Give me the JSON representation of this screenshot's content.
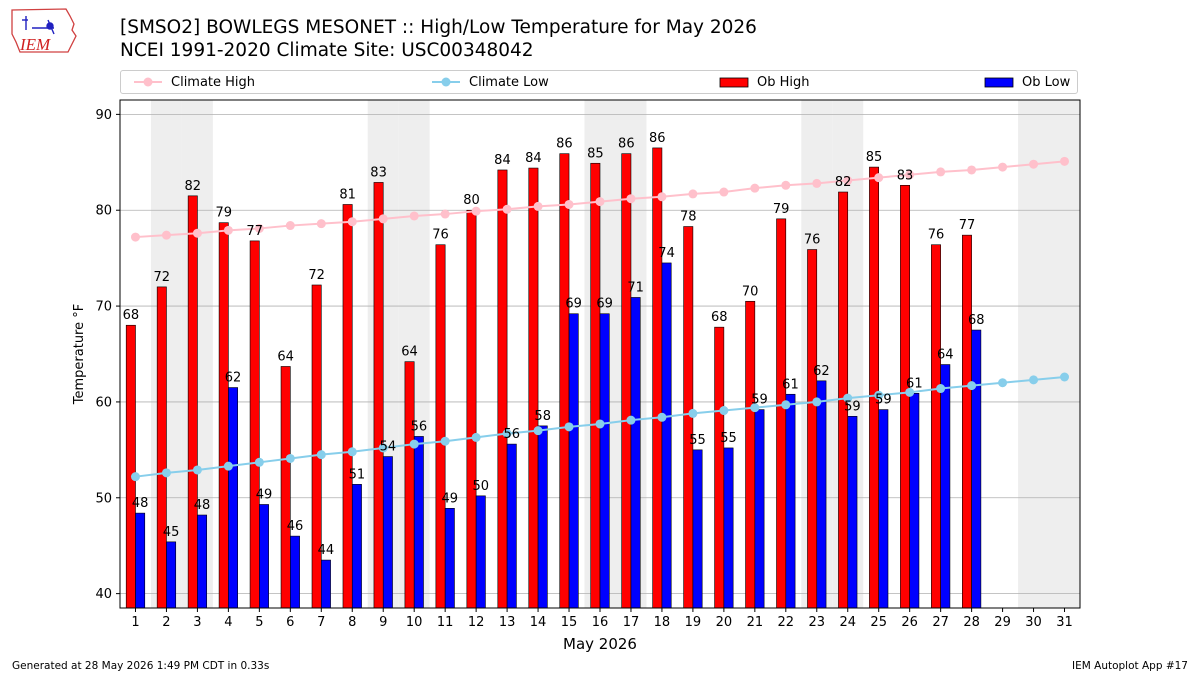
{
  "header": {
    "title_line1": "[SMSO2] BOWLEGS MESONET :: High/Low Temperature for May 2026",
    "title_line2": "NCEI 1991-2020 Climate Site: USC00348042",
    "logo_text": "IEM"
  },
  "footer": {
    "generated": "Generated at 28 May 2026 1:49 PM CDT in 0.33s",
    "app": "IEM Autoplot App #17"
  },
  "chart_data": {
    "type": "bar",
    "xlabel": "May 2026",
    "ylabel": "Temperature °F",
    "ylim": [
      38.5,
      91.5
    ],
    "yticks": [
      40,
      50,
      60,
      70,
      80,
      90
    ],
    "grid": true,
    "legend_placement": "top, full width above plot",
    "x": [
      1,
      2,
      3,
      4,
      5,
      6,
      7,
      8,
      9,
      10,
      11,
      12,
      13,
      14,
      15,
      16,
      17,
      18,
      19,
      20,
      21,
      22,
      23,
      24,
      25,
      26,
      27,
      28,
      29,
      30,
      31
    ],
    "shaded_weekend_days": [
      2,
      3,
      9,
      10,
      16,
      17,
      23,
      24,
      30,
      31
    ],
    "colors": {
      "ob_high": "#ff0000",
      "ob_low": "#0000ff",
      "climate_high": "#ffc0cb",
      "climate_low": "#87ceeb",
      "weekend_shade": "#eeeeee"
    },
    "series": [
      {
        "name": "Climate High",
        "kind": "line",
        "values": [
          77.2,
          77.4,
          77.6,
          77.9,
          78.1,
          78.4,
          78.6,
          78.8,
          79.1,
          79.4,
          79.6,
          79.9,
          80.1,
          80.4,
          80.6,
          80.9,
          81.2,
          81.4,
          81.7,
          81.9,
          82.3,
          82.6,
          82.8,
          83.1,
          83.4,
          83.7,
          84.0,
          84.2,
          84.5,
          84.8,
          85.1
        ]
      },
      {
        "name": "Climate Low",
        "kind": "line",
        "values": [
          52.2,
          52.6,
          52.9,
          53.3,
          53.7,
          54.1,
          54.5,
          54.8,
          55.2,
          55.6,
          55.9,
          56.3,
          56.7,
          57.0,
          57.4,
          57.7,
          58.1,
          58.4,
          58.8,
          59.1,
          59.4,
          59.7,
          60.0,
          60.4,
          60.7,
          61.0,
          61.4,
          61.7,
          62.0,
          62.3,
          62.6
        ]
      },
      {
        "name": "Ob High",
        "kind": "bar",
        "values": [
          68,
          72,
          82,
          79,
          77,
          64,
          72,
          81,
          83,
          64,
          76,
          80,
          84,
          84,
          86,
          85,
          86,
          86,
          78,
          68,
          70,
          79,
          76,
          82,
          85,
          83,
          76,
          77,
          null,
          null,
          null
        ],
        "raw": [
          68.0,
          72.0,
          81.5,
          78.7,
          76.8,
          63.7,
          72.2,
          80.6,
          82.9,
          64.2,
          76.4,
          80.0,
          84.2,
          84.4,
          85.9,
          84.9,
          85.9,
          86.5,
          78.3,
          67.8,
          70.5,
          79.1,
          75.9,
          81.9,
          84.5,
          82.6,
          76.4,
          77.4,
          null,
          null,
          null
        ]
      },
      {
        "name": "Ob Low",
        "kind": "bar",
        "values": [
          48,
          45,
          48,
          62,
          49,
          46,
          44,
          51,
          54,
          56,
          49,
          50,
          56,
          58,
          69,
          69,
          71,
          74,
          55,
          55,
          59,
          61,
          62,
          59,
          59,
          61,
          64,
          68,
          null,
          null,
          null
        ],
        "raw": [
          48.4,
          45.4,
          48.2,
          61.5,
          49.3,
          46.0,
          43.5,
          51.4,
          54.3,
          56.4,
          48.9,
          50.2,
          55.6,
          57.5,
          69.2,
          69.2,
          70.9,
          74.5,
          55.0,
          55.2,
          59.2,
          60.8,
          62.2,
          58.5,
          59.2,
          60.9,
          63.9,
          67.5,
          null,
          null,
          null
        ]
      }
    ]
  }
}
